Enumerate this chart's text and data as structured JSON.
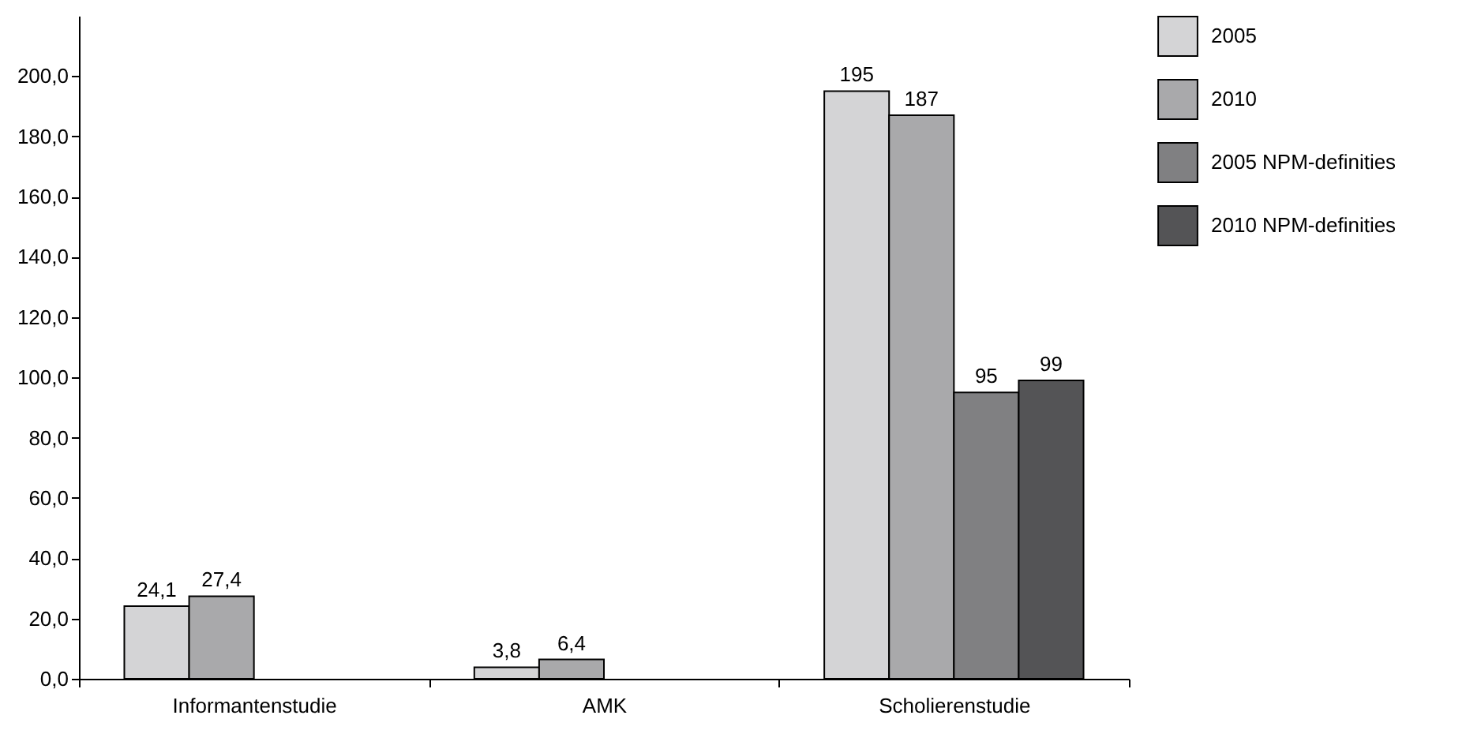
{
  "chart_data": {
    "type": "bar",
    "categories": [
      "Informantenstudie",
      "AMK",
      "Scholierenstudie"
    ],
    "series": [
      {
        "name": "2005",
        "color": "#d4d4d6",
        "values": [
          24.1,
          3.8,
          195
        ],
        "value_labels": [
          "24,1",
          "3,8",
          "195"
        ]
      },
      {
        "name": "2010",
        "color": "#a9a9ab",
        "values": [
          27.4,
          6.4,
          187
        ],
        "value_labels": [
          "27,4",
          "6,4",
          "187"
        ]
      },
      {
        "name": "2005 NPM-definities",
        "color": "#808082",
        "values": [
          null,
          null,
          95
        ],
        "value_labels": [
          null,
          null,
          "95"
        ]
      },
      {
        "name": "2010 NPM-definities",
        "color": "#545456",
        "values": [
          null,
          null,
          99
        ],
        "value_labels": [
          null,
          null,
          "99"
        ]
      }
    ],
    "ylim": [
      0,
      220
    ],
    "yticks": [
      {
        "value": 0,
        "label": "0,0"
      },
      {
        "value": 20,
        "label": "20,0"
      },
      {
        "value": 40,
        "label": "40,0"
      },
      {
        "value": 60,
        "label": "60,0"
      },
      {
        "value": 80,
        "label": "80,0"
      },
      {
        "value": 100,
        "label": "100,0"
      },
      {
        "value": 120,
        "label": "120,0"
      },
      {
        "value": 140,
        "label": "140,0"
      },
      {
        "value": 160,
        "label": "160,0"
      },
      {
        "value": 180,
        "label": "180,0"
      },
      {
        "value": 200,
        "label": "200,0"
      }
    ],
    "grid": false,
    "legend": "right"
  }
}
